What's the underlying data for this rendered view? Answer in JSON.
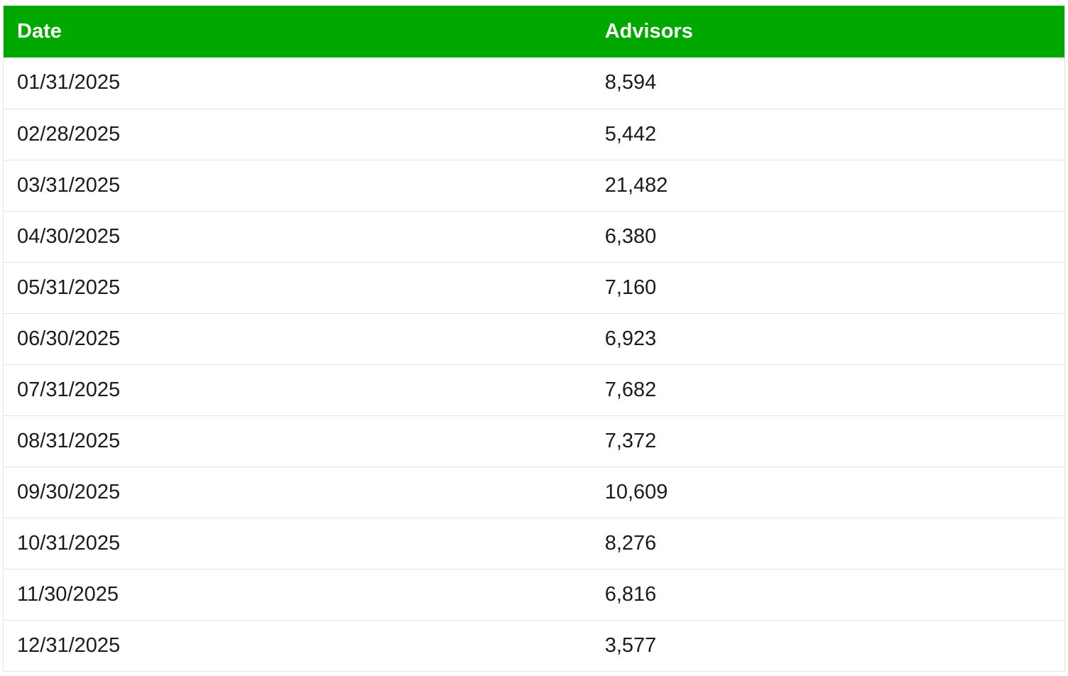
{
  "colors": {
    "header_bg": "#00a800",
    "header_text": "#ffffff",
    "cell_text": "#1b1b1b",
    "row_divider": "#e4e4e4",
    "page_bg": "#ffffff"
  },
  "table": {
    "headers": {
      "date": "Date",
      "advisors": "Advisors"
    },
    "rows": [
      {
        "date": "01/31/2025",
        "advisors": "8,594"
      },
      {
        "date": "02/28/2025",
        "advisors": "5,442"
      },
      {
        "date": "03/31/2025",
        "advisors": "21,482"
      },
      {
        "date": "04/30/2025",
        "advisors": "6,380"
      },
      {
        "date": "05/31/2025",
        "advisors": "7,160"
      },
      {
        "date": "06/30/2025",
        "advisors": "6,923"
      },
      {
        "date": "07/31/2025",
        "advisors": "7,682"
      },
      {
        "date": "08/31/2025",
        "advisors": "7,372"
      },
      {
        "date": "09/30/2025",
        "advisors": "10,609"
      },
      {
        "date": "10/31/2025",
        "advisors": "8,276"
      },
      {
        "date": "11/30/2025",
        "advisors": "6,816"
      },
      {
        "date": "12/31/2025",
        "advisors": "3,577"
      }
    ]
  }
}
